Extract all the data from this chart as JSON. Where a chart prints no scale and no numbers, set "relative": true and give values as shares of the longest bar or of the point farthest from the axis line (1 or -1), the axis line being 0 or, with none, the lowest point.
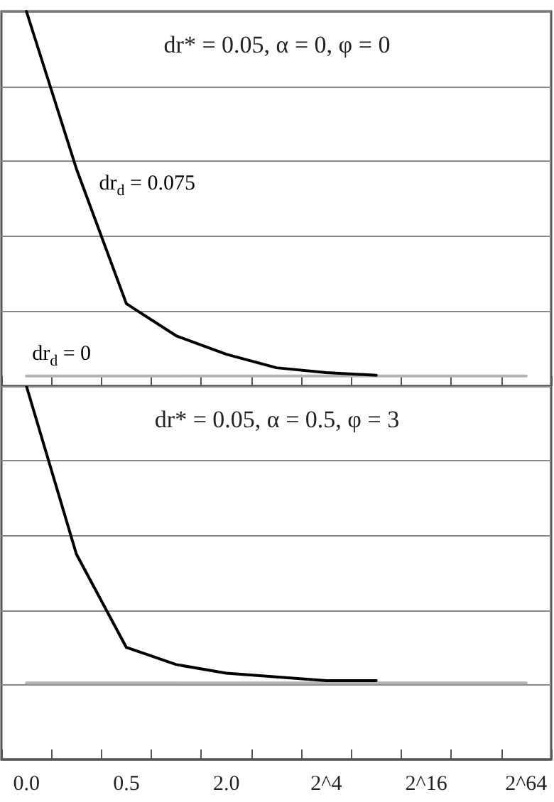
{
  "chart_data": [
    {
      "type": "line",
      "title": "dr* = 0.05, α = 0, φ = 0",
      "relative": true,
      "categories": [
        null,
        null,
        null,
        null,
        null,
        null,
        null,
        null,
        null,
        null,
        null
      ],
      "tick_labels": false,
      "grid": "y",
      "legend": false,
      "marker": "none",
      "series": [
        {
          "name": "dr$_{d}$ = 0",
          "color": "#b4b4b4",
          "values": [
            0.027,
            0.027,
            0.027,
            0.027,
            0.027,
            0.027,
            0.027,
            0.027,
            0.027,
            0.027,
            0.027
          ]
        },
        {
          "name": "dr$_{d}$ = 0.075",
          "color": "#000000",
          "values": [
            1,
            0.58,
            0.22,
            0.134,
            0.085,
            0.049,
            0.036,
            0.029,
            null,
            null,
            null
          ]
        }
      ]
    },
    {
      "type": "line",
      "title": "dr* = 0.05, α = 0.5, φ = 3",
      "relative": true,
      "categories": [
        "0.0",
        null,
        "0.5",
        null,
        "2.0",
        null,
        "2^4",
        null,
        "2^16",
        null,
        "2^64"
      ],
      "tick_labels": "x",
      "grid": "y",
      "legend": false,
      "marker": "none",
      "series": [
        {
          "color": "#b4b4b4",
          "values": [
            0.205,
            0.205,
            0.205,
            0.205,
            0.205,
            0.205,
            0.205,
            0.205,
            0.205,
            0.205,
            0.205
          ]
        },
        {
          "color": "#000000",
          "values": [
            1,
            0.55,
            0.3,
            0.254,
            0.231,
            0.221,
            0.211,
            0.211,
            null,
            null,
            null
          ]
        }
      ]
    }
  ]
}
